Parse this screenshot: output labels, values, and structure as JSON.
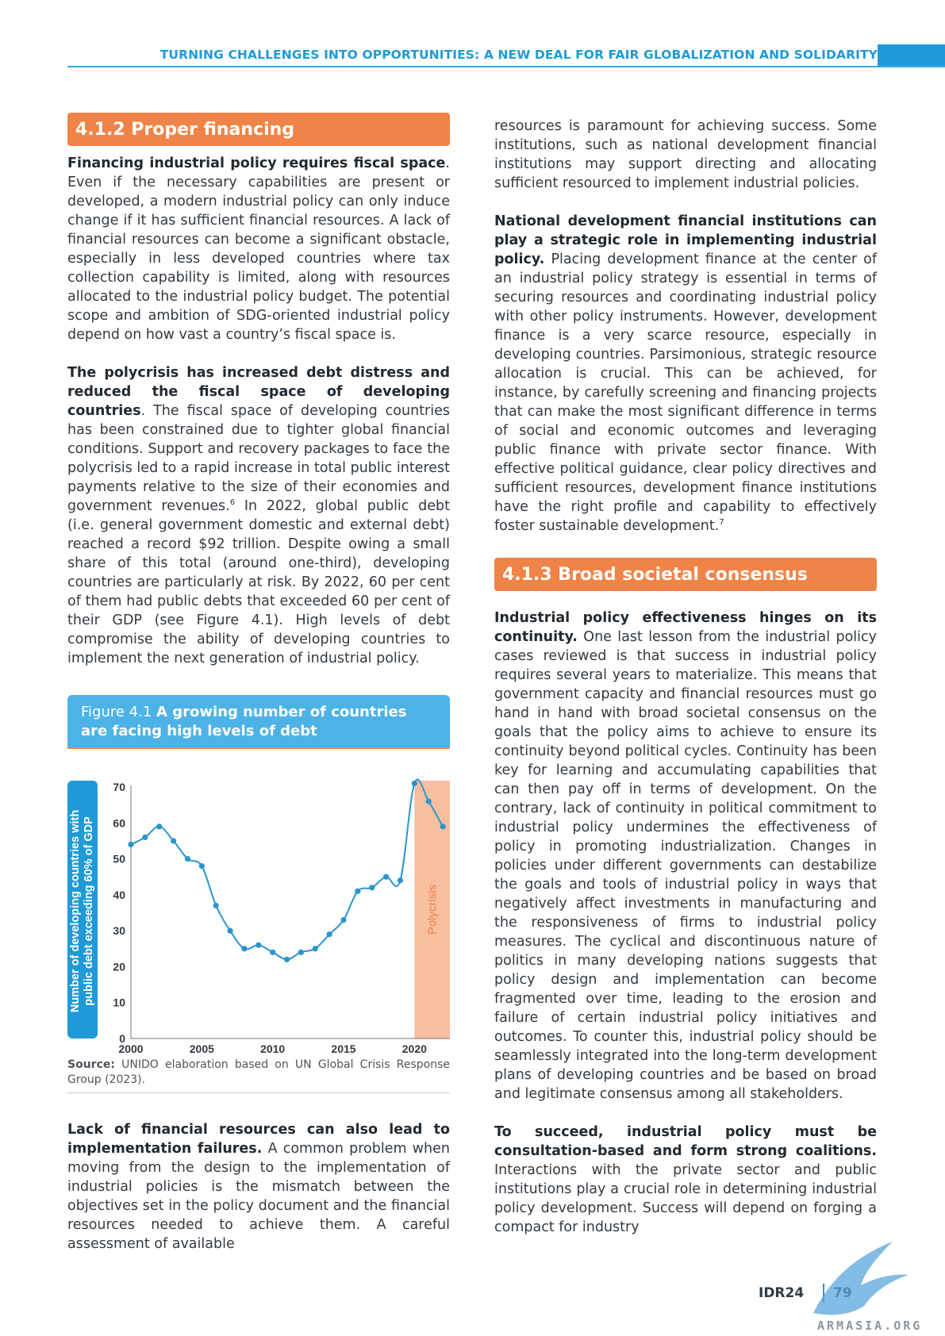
{
  "header": {
    "title": "TURNING CHALLENGES INTO OPPORTUNITIES: A NEW DEAL FOR FAIR GLOBALIZATION AND SOLIDARITY"
  },
  "left": {
    "section_title": "4.1.2 Proper financing",
    "p1_bold": "Financing industrial policy requires fiscal space",
    "p1_text": ". Even if the necessary capabilities are present or developed, a modern industrial policy can only induce change if it has sufficient financial resources. A lack of financial resources can become a significant obstacle, especially in less developed countries where tax collection capability is limited, along with resources allocated to the industrial policy budget. The potential scope and ambition of SDG-oriented industrial policy depend on how vast a country’s fiscal space is.",
    "p2_bold": "The polycrisis has increased debt distress and reduced the fiscal space of developing countries",
    "p2_text_a": ". The fiscal space of developing countries has been constrained due to tighter global financial conditions. Support and recovery packages to face the polycrisis led to a rapid increase in total public interest payments relative to the size of their economies and government revenues.",
    "p2_sup": "6",
    "p2_text_b": " In 2022, global public debt (i.e. general government domestic and external debt) reached a record $92 trillion. Despite owing a small share of this total (around one-third), developing countries are particularly at risk. By 2022, 60 per cent of them had public debts that exceeded 60 per cent of their GDP (see Figure 4.1). High levels of debt compromise the ability of developing countries to implement the next generation of industrial policy.",
    "fig_label": "Figure 4.1 ",
    "fig_title": "A growing number of countries are facing high levels of debt",
    "source_label": "Source:",
    "source_text": " UNIDO elaboration based on UN Global Crisis Response Group (2023).",
    "p3_bold": "Lack of financial resources can also lead to implementation failures.",
    "p3_text": " A common problem when moving from the design to the implementation of industrial policies is the mismatch between the objectives set in the policy document and the financial resources needed to achieve them. A careful assessment of available"
  },
  "right": {
    "p1_text": "resources is paramount for achieving success. Some institutions, such as national development financial institutions may support directing and allocating sufficient resourced to implement industrial policies.",
    "p2_bold": "National development financial institutions can play a strategic role in implementing industrial policy.",
    "p2_text": " Placing development finance at the center of an industrial policy strategy is essential in terms of securing resources and coordinating industrial policy with other policy instruments. However, development finance is a very scarce resource, especially in developing countries. Parsimonious, strategic resource allocation is crucial. This can be achieved, for instance, by carefully screening and financing projects that can make the most significant difference in terms of social and economic outcomes and leveraging public finance with private sector finance. With effective political guidance, clear policy directives and sufficient resources, development finance institutions have the right profile and capability to effectively foster sustainable development.",
    "p2_sup": "7",
    "section_title": "4.1.3 Broad societal consensus",
    "p3_bold": "Industrial policy effectiveness hinges on its continuity.",
    "p3_text": " One last lesson from the industrial policy cases reviewed is that success in industrial policy requires several years to materialize. This means that government capacity and financial resources must go hand in hand with broad societal consensus on the goals that the policy aims to achieve to ensure its continuity beyond political cycles. Continuity has been key for learning and accumulating capabilities that can then pay off in terms of development. On the contrary, lack of continuity in political commitment to industrial policy undermines the effectiveness of policy in promoting industrialization. Changes in policies under different governments can destabilize the goals and tools of industrial policy in ways that negatively affect investments in manufacturing and the responsiveness of firms to industrial policy measures. The cyclical and discontinuous nature of politics in many developing nations suggests that policy design and implementation can become fragmented over time, leading to the erosion and failure of certain industrial policy initiatives and outcomes. To counter this, industrial policy should be seamlessly integrated into the long-term development plans of developing countries and be based on broad and legitimate consensus among all stakeholders.",
    "p4_bold": "To succeed, industrial policy must be consultation-based and form strong coalitions.",
    "p4_text": " Interactions with the private sector and public institutions play a crucial role in determining industrial policy development. Success will depend on forging a compact for industry"
  },
  "footer": {
    "report": "IDR24",
    "page": "79",
    "watermark": "ARMASIA.ORG"
  },
  "chart_data": {
    "type": "line",
    "ylabel": "Number of developing countries with public debt exceeding 60% of GDP",
    "xlabel": "",
    "ylim": [
      0,
      70
    ],
    "xlim": [
      2000,
      2022.5
    ],
    "yticks": [
      0,
      10,
      20,
      30,
      40,
      50,
      60,
      70
    ],
    "xticks": [
      2000,
      2005,
      2010,
      2015,
      2020
    ],
    "shaded_region": {
      "label": "Polycrisis",
      "from": 2020,
      "to": 2022.5,
      "color": "#f8bfa0"
    },
    "series_color": "#2a95cf",
    "x": [
      2000,
      2001,
      2002,
      2003,
      2004,
      2005,
      2006,
      2007,
      2008,
      2009,
      2010,
      2011,
      2012,
      2013,
      2014,
      2015,
      2016,
      2017,
      2018,
      2019,
      2020,
      2021,
      2022
    ],
    "values": [
      54,
      56,
      59,
      55,
      50,
      48,
      37,
      30,
      25,
      26,
      24,
      22,
      24,
      25,
      29,
      33,
      41,
      42,
      45,
      44,
      71,
      66,
      59
    ]
  }
}
